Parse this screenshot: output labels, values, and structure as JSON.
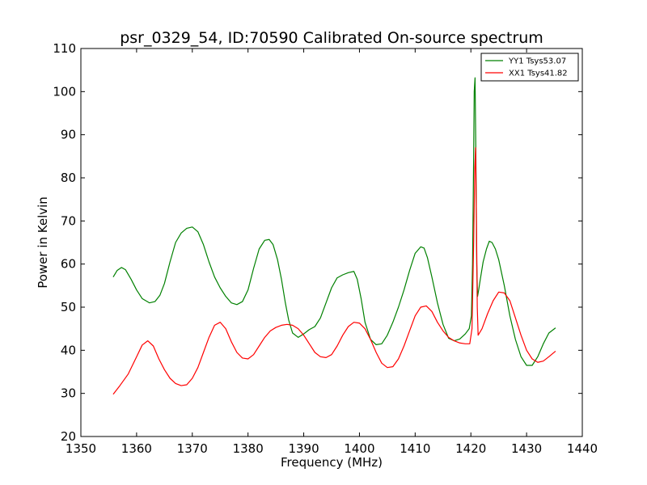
{
  "chart_data": {
    "type": "line",
    "title": "psr_0329_54, ID:70590 Calibrated On-source spectrum",
    "xlabel": "Frequency (MHz)",
    "ylabel": "Power in Kelvin",
    "xlim": [
      1350,
      1440
    ],
    "ylim": [
      20,
      110
    ],
    "xticks": [
      1350,
      1360,
      1370,
      1380,
      1390,
      1400,
      1410,
      1420,
      1430,
      1440
    ],
    "yticks": [
      20,
      30,
      40,
      50,
      60,
      70,
      80,
      90,
      100,
      110
    ],
    "grid": false,
    "legend_position": "top-right",
    "series": [
      {
        "name": "YY1 Tsys53.07",
        "color": "#008000",
        "x": [
          1355.8,
          1356.5,
          1357.3,
          1358.0,
          1359.0,
          1360.0,
          1361.0,
          1362.3,
          1363.3,
          1364.2,
          1365.0,
          1366.0,
          1367.0,
          1368.0,
          1369.0,
          1370.0,
          1371.0,
          1372.0,
          1373.0,
          1374.0,
          1375.0,
          1376.0,
          1377.0,
          1378.0,
          1379.0,
          1380.0,
          1381.0,
          1382.0,
          1383.0,
          1383.8,
          1384.5,
          1385.3,
          1386.0,
          1386.7,
          1387.3,
          1388.0,
          1389.0,
          1390.0,
          1391.0,
          1392.0,
          1393.0,
          1394.0,
          1395.0,
          1396.0,
          1397.0,
          1398.0,
          1399.0,
          1399.6,
          1400.3,
          1401.0,
          1402.0,
          1403.0,
          1404.0,
          1405.0,
          1406.0,
          1407.0,
          1408.0,
          1409.0,
          1410.0,
          1411.0,
          1411.6,
          1412.2,
          1413.0,
          1414.0,
          1415.0,
          1416.0,
          1417.0,
          1418.0,
          1419.0,
          1419.7,
          1420.1,
          1420.3,
          1420.5,
          1420.6,
          1420.75,
          1420.9,
          1421.05,
          1421.2,
          1421.4,
          1421.7,
          1422.2,
          1422.8,
          1423.3,
          1423.8,
          1424.4,
          1425.0,
          1426.0,
          1427.0,
          1428.0,
          1429.0,
          1430.0,
          1431.0,
          1432.0,
          1433.0,
          1434.0,
          1435.2
        ],
        "y": [
          57.0,
          58.5,
          59.2,
          58.7,
          56.5,
          54.0,
          52.0,
          51.0,
          51.3,
          52.8,
          55.5,
          60.5,
          65.0,
          67.2,
          68.3,
          68.6,
          67.5,
          64.5,
          60.5,
          57.0,
          54.5,
          52.5,
          51.0,
          50.6,
          51.3,
          54.0,
          59.0,
          63.5,
          65.5,
          65.7,
          64.5,
          61.0,
          56.5,
          51.0,
          47.0,
          44.0,
          43.0,
          43.8,
          44.8,
          45.5,
          47.5,
          51.0,
          54.5,
          56.8,
          57.5,
          58.0,
          58.3,
          56.5,
          52.0,
          46.5,
          42.5,
          41.3,
          41.5,
          43.5,
          46.5,
          50.0,
          54.0,
          58.5,
          62.5,
          64.0,
          63.7,
          61.5,
          57.0,
          51.0,
          46.0,
          42.8,
          42.2,
          42.6,
          43.8,
          45.0,
          48.0,
          60.0,
          85.0,
          100.0,
          103.2,
          85.0,
          60.0,
          52.5,
          54.0,
          56.5,
          60.5,
          63.5,
          65.3,
          65.0,
          63.5,
          61.0,
          55.0,
          48.0,
          42.5,
          38.5,
          36.5,
          36.5,
          38.5,
          41.5,
          44.0,
          45.2
        ]
      },
      {
        "name": "XX1 Tsys41.82",
        "color": "#ff0000",
        "x": [
          1355.8,
          1357.0,
          1358.5,
          1360.0,
          1361.0,
          1362.0,
          1363.0,
          1364.0,
          1365.0,
          1366.0,
          1367.0,
          1368.0,
          1369.0,
          1370.0,
          1371.0,
          1372.0,
          1373.0,
          1374.0,
          1375.0,
          1376.0,
          1377.0,
          1378.0,
          1379.0,
          1380.0,
          1381.0,
          1382.0,
          1383.0,
          1384.0,
          1385.0,
          1386.0,
          1387.0,
          1388.0,
          1389.0,
          1390.0,
          1391.0,
          1392.0,
          1393.0,
          1394.0,
          1395.0,
          1396.0,
          1397.0,
          1398.0,
          1399.0,
          1400.0,
          1401.0,
          1402.0,
          1403.0,
          1404.0,
          1405.0,
          1406.0,
          1407.0,
          1408.0,
          1409.0,
          1410.0,
          1411.0,
          1412.0,
          1413.0,
          1414.0,
          1415.0,
          1416.0,
          1417.0,
          1418.0,
          1419.0,
          1419.8,
          1420.2,
          1420.5,
          1420.7,
          1420.85,
          1421.0,
          1421.15,
          1421.3,
          1422.0,
          1423.0,
          1424.0,
          1425.0,
          1426.0,
          1427.0,
          1428.0,
          1429.0,
          1430.0,
          1431.0,
          1432.0,
          1433.0,
          1434.0,
          1435.2
        ],
        "y": [
          29.8,
          31.8,
          34.5,
          38.5,
          41.2,
          42.2,
          41.0,
          38.0,
          35.5,
          33.5,
          32.3,
          31.8,
          32.0,
          33.5,
          36.0,
          39.5,
          43.0,
          45.8,
          46.5,
          45.0,
          42.0,
          39.5,
          38.2,
          38.0,
          39.0,
          41.0,
          43.0,
          44.5,
          45.3,
          45.8,
          46.0,
          45.8,
          45.0,
          43.5,
          41.5,
          39.5,
          38.5,
          38.3,
          39.0,
          41.0,
          43.5,
          45.5,
          46.5,
          46.3,
          45.0,
          42.5,
          39.5,
          37.0,
          36.0,
          36.2,
          38.0,
          41.0,
          44.5,
          48.0,
          50.0,
          50.3,
          49.0,
          46.5,
          44.5,
          43.0,
          42.2,
          41.7,
          41.5,
          41.5,
          45.0,
          65.0,
          82.0,
          87.0,
          70.0,
          50.0,
          43.5,
          45.0,
          48.5,
          51.5,
          53.5,
          53.3,
          51.5,
          47.5,
          43.5,
          40.0,
          38.0,
          37.2,
          37.5,
          38.5,
          39.8
        ]
      }
    ]
  }
}
